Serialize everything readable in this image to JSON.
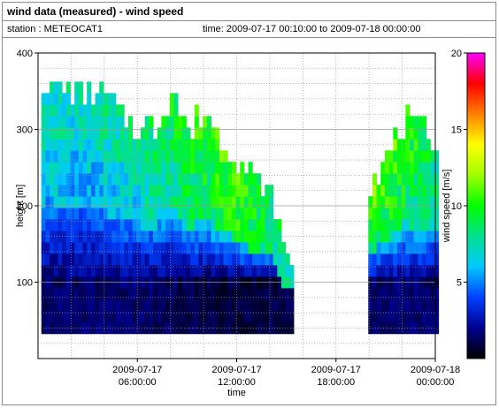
{
  "header": {
    "title": "wind data (measured) - wind speed",
    "station": "station : METEOCAT1",
    "time_range": "time: 2009-07-17 00:10:00 to 2009-07-18 00:00:00"
  },
  "chart_data": {
    "type": "heatmap",
    "xlabel": "time",
    "ylabel": "height [m]",
    "colorbar_label": "wind speed [m/s]",
    "xlim": [
      "2009-07-17 00:00:00",
      "2009-07-18 00:00:00"
    ],
    "ylim": [
      0,
      400
    ],
    "clim": [
      0,
      20
    ],
    "x_ticks": [
      {
        "line1": "2009-07-17",
        "line2": "06:00:00",
        "value": 6
      },
      {
        "line1": "2009-07-17",
        "line2": "12:00:00",
        "value": 12
      },
      {
        "line1": "2009-07-17",
        "line2": "18:00:00",
        "value": 18
      },
      {
        "line1": "2009-07-18",
        "line2": "00:00:00",
        "value": 24
      }
    ],
    "y_ticks": [
      {
        "label": "100",
        "value": 100
      },
      {
        "label": "200",
        "value": 200
      },
      {
        "label": "300",
        "value": 300
      },
      {
        "label": "400",
        "value": 400
      }
    ],
    "cbar_ticks": [
      {
        "label": "5",
        "value": 5
      },
      {
        "label": "10",
        "value": 10
      },
      {
        "label": "15",
        "value": 15
      },
      {
        "label": "20",
        "value": 20
      }
    ],
    "grid": true,
    "height_levels_m": [
      40,
      55,
      70,
      85,
      100,
      115,
      130,
      145,
      160,
      175,
      190,
      205,
      220,
      235,
      250,
      265,
      280,
      295,
      310,
      325,
      340,
      355
    ],
    "gap_hours": [
      15.3,
      19.8
    ],
    "profile_top_m": [
      {
        "t": 0.2,
        "top": 365
      },
      {
        "t": 1.0,
        "top": 365
      },
      {
        "t": 2.0,
        "top": 360
      },
      {
        "t": 3.0,
        "top": 355
      },
      {
        "t": 4.0,
        "top": 345
      },
      {
        "t": 5.0,
        "top": 320
      },
      {
        "t": 6.0,
        "top": 310
      },
      {
        "t": 7.0,
        "top": 305
      },
      {
        "t": 8.0,
        "top": 360
      },
      {
        "t": 9.0,
        "top": 300
      },
      {
        "t": 10.0,
        "top": 330
      },
      {
        "t": 11.0,
        "top": 290
      },
      {
        "t": 12.0,
        "top": 270
      },
      {
        "t": 13.0,
        "top": 240
      },
      {
        "t": 14.0,
        "top": 220
      },
      {
        "t": 15.0,
        "top": 130
      },
      {
        "t": 15.3,
        "top": 125
      },
      {
        "t": 19.8,
        "top": 230
      },
      {
        "t": 21.0,
        "top": 270
      },
      {
        "t": 22.0,
        "top": 315
      },
      {
        "t": 23.0,
        "top": 300
      },
      {
        "t": 24.0,
        "top": 290
      }
    ],
    "wind_speed_profile": [
      {
        "t": 0.2,
        "low": 1.5,
        "mid": 6.0,
        "high": 7.5
      },
      {
        "t": 3.0,
        "low": 1.5,
        "mid": 5.5,
        "high": 7.5
      },
      {
        "t": 6.0,
        "low": 1.5,
        "mid": 6.5,
        "high": 8.5
      },
      {
        "t": 9.0,
        "low": 1.0,
        "mid": 8.0,
        "high": 10.0
      },
      {
        "t": 12.0,
        "low": 0.8,
        "mid": 9.5,
        "high": 11.0
      },
      {
        "t": 15.0,
        "low": 1.0,
        "mid": 7.0,
        "high": 8.0
      },
      {
        "t": 19.8,
        "low": 1.5,
        "mid": 9.0,
        "high": 12.0
      },
      {
        "t": 22.0,
        "low": 1.5,
        "mid": 8.5,
        "high": 10.5
      },
      {
        "t": 24.0,
        "low": 1.5,
        "mid": 7.0,
        "high": 9.0
      }
    ]
  }
}
